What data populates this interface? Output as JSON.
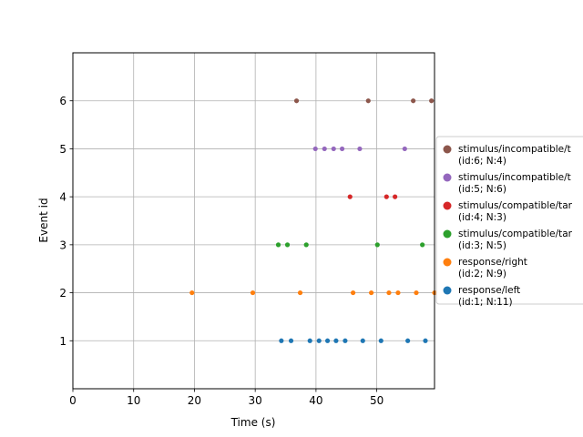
{
  "chart_data": {
    "type": "scatter",
    "xlabel": "Time (s)",
    "ylabel": "Event id",
    "xlim": [
      0,
      59.5
    ],
    "ylim": [
      0,
      7
    ],
    "xticks": [
      0,
      10,
      20,
      30,
      40,
      50
    ],
    "yticks": [
      1,
      2,
      3,
      4,
      5,
      6
    ],
    "grid": true,
    "legend_position": "right, outside plot",
    "series": [
      {
        "event_id": 1,
        "legend_line1": "response/left",
        "legend_line2": "(id:1; N:11)",
        "color": "#1f77b4",
        "x": [
          34.3,
          35.9,
          39.0,
          40.5,
          41.9,
          43.3,
          44.8,
          47.7,
          50.7,
          55.1,
          58.0
        ]
      },
      {
        "event_id": 2,
        "legend_line1": "response/right",
        "legend_line2": "(id:2; N:9)",
        "color": "#ff7f0e",
        "x": [
          19.6,
          29.6,
          37.4,
          46.1,
          49.1,
          52.0,
          53.5,
          56.5,
          59.5
        ]
      },
      {
        "event_id": 3,
        "legend_line1": "stimulus/compatible/tar",
        "legend_line2": "(id:3; N:5)",
        "color": "#2ca02c",
        "x": [
          33.8,
          35.3,
          38.4,
          50.1,
          57.5
        ]
      },
      {
        "event_id": 4,
        "legend_line1": "stimulus/compatible/tar",
        "legend_line2": "(id:4; N:3)",
        "color": "#d62728",
        "x": [
          45.6,
          51.6,
          53.0
        ]
      },
      {
        "event_id": 5,
        "legend_line1": "stimulus/incompatible/t",
        "legend_line2": "(id:5; N:6)",
        "color": "#9467bd",
        "x": [
          39.9,
          41.4,
          42.9,
          44.3,
          47.2,
          54.6
        ]
      },
      {
        "event_id": 6,
        "legend_line1": "stimulus/incompatible/t",
        "legend_line2": "(id:6; N:4)",
        "color": "#8c564b",
        "x": [
          36.8,
          48.6,
          56.0,
          59.0
        ]
      }
    ]
  }
}
